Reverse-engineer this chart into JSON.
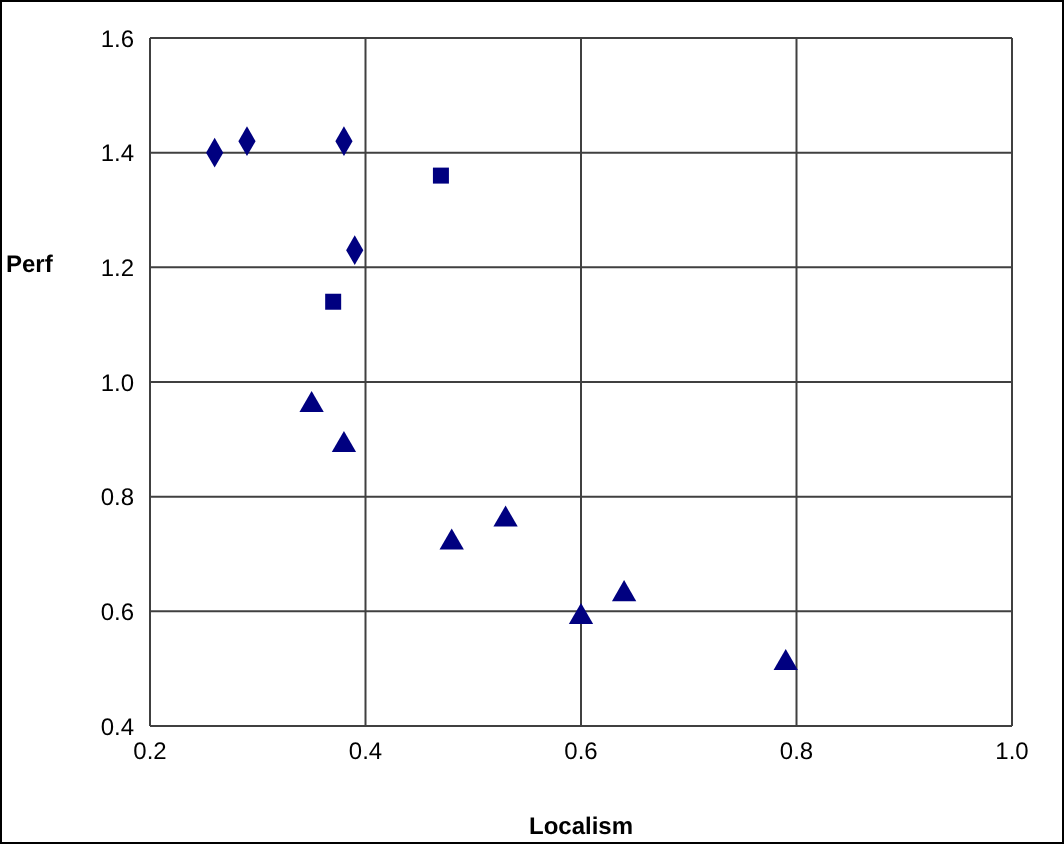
{
  "chart_data": {
    "type": "scatter",
    "xlabel": "Localism",
    "ylabel": "Perf",
    "xlim": [
      0.2,
      1.0
    ],
    "xticks": [
      {
        "value": 0.2,
        "label": "0.2"
      },
      {
        "value": 0.4,
        "label": "0.4"
      },
      {
        "value": 0.6,
        "label": "0.6"
      },
      {
        "value": 0.8,
        "label": "0.8"
      },
      {
        "value": 1.0,
        "label": "1.0"
      }
    ],
    "ylim": [
      0.4,
      1.6
    ],
    "yticks": [
      {
        "value": 0.4,
        "label": "0.4"
      },
      {
        "value": 0.6,
        "label": "0.6"
      },
      {
        "value": 0.8,
        "label": "0.8"
      },
      {
        "value": 1.0,
        "label": "1.0"
      },
      {
        "value": 1.2,
        "label": "1.2"
      },
      {
        "value": 1.4,
        "label": "1.4"
      },
      {
        "value": 1.6,
        "label": "1.6"
      }
    ],
    "grid": true,
    "legend": false,
    "series": [
      {
        "color": "#000080",
        "marker": "diamond",
        "x": [
          0.26,
          0.29,
          0.38,
          0.39
        ],
        "values": [
          1.4,
          1.42,
          1.42,
          1.23
        ]
      },
      {
        "color": "#000080",
        "marker": "square",
        "x": [
          0.47,
          0.37
        ],
        "values": [
          1.36,
          1.14
        ]
      },
      {
        "color": "#000080",
        "marker": "triangle",
        "x": [
          0.35,
          0.38,
          0.48,
          0.53,
          0.6,
          0.64,
          0.79
        ],
        "values": [
          0.96,
          0.89,
          0.72,
          0.76,
          0.59,
          0.63,
          0.51
        ]
      }
    ]
  }
}
